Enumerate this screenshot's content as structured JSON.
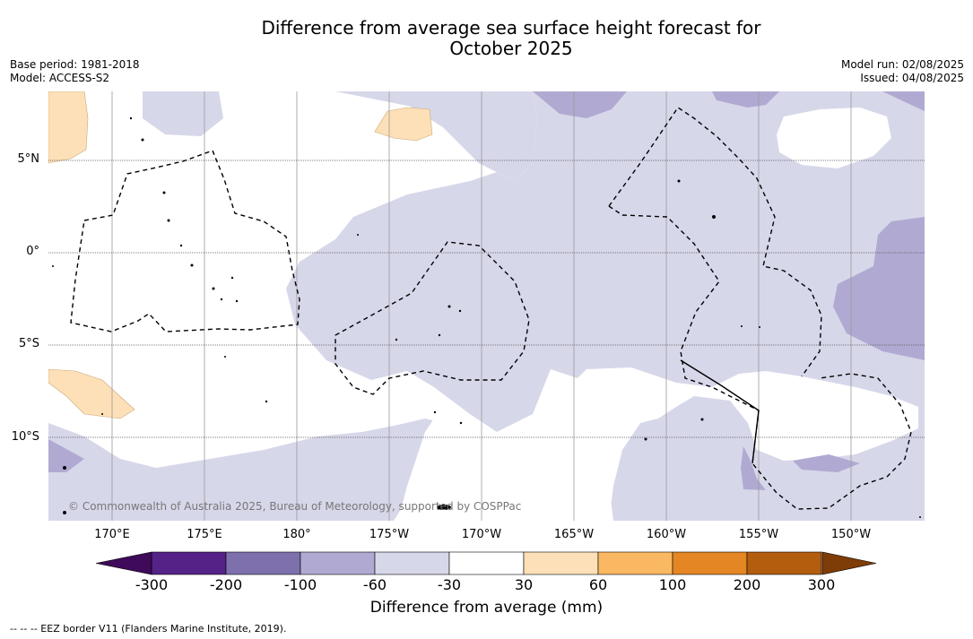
{
  "title_line1": "Difference from average sea surface height forecast for",
  "title_line2": "October 2025",
  "meta_left": {
    "base_period": "Base period: 1981-2018",
    "model": "Model: ACCESS-S2"
  },
  "meta_right": {
    "model_run": "Model run: 02/08/2025",
    "issued": "Issued: 04/08/2025"
  },
  "map": {
    "lon_labels": [
      "170°E",
      "175°E",
      "180°",
      "175°W",
      "170°W",
      "165°W",
      "160°W",
      "155°W",
      "150°W"
    ],
    "lat_labels": [
      "5°N",
      "0°",
      "5°S",
      "10°S"
    ],
    "copyright": "© Commonwealth of Australia 2025, Bureau of Meteorology, supported by COSPPac",
    "colors": {
      "light_purple": "#d7d7ea",
      "mid_purple": "#b0aad2",
      "light_orange": "#fde0b7",
      "eez_line": "#000000"
    }
  },
  "colorbar": {
    "ticks": [
      "-300",
      "-200",
      "-100",
      "-60",
      "-30",
      "30",
      "60",
      "100",
      "200",
      "300"
    ],
    "colors": [
      "#3f0a5a",
      "#552288",
      "#7e70ad",
      "#b0aad2",
      "#d7d7ea",
      "#ffffff",
      "#fde0b7",
      "#fbb862",
      "#e48623",
      "#b35d0e",
      "#7e3c07"
    ],
    "title": "Difference from average (mm)"
  },
  "footer": "--  --  -- EEZ border V11 (Flanders Marine Institute, 2019)."
}
